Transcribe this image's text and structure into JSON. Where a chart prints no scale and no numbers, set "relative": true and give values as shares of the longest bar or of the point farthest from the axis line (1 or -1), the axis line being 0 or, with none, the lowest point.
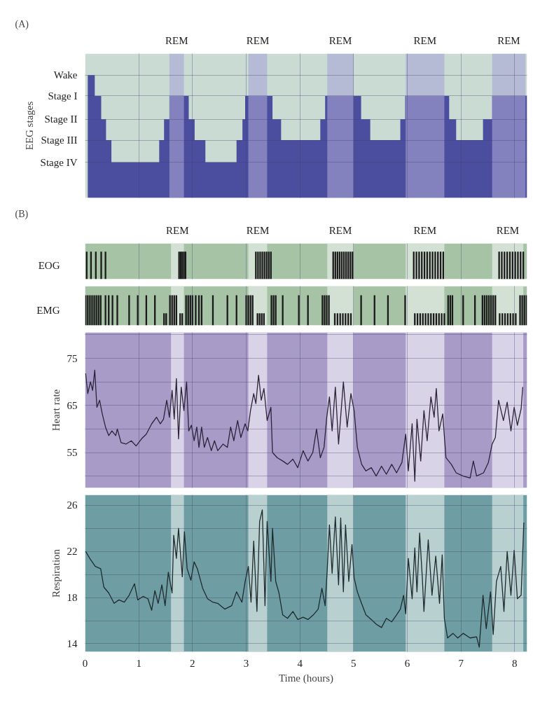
{
  "chart_data": [
    {
      "type": "area",
      "relative": true,
      "annotations": [
        "(A)",
        "Wake",
        "Stage I",
        "Stage II",
        "Stage III",
        "Stage IV"
      ],
      "ylabel": "EEG stages",
      "color": "#4b4e9e",
      "x": [
        0.05,
        0.18,
        0.18,
        0.3,
        0.3,
        0.39,
        0.39,
        0.49,
        0.49,
        1.38,
        1.38,
        1.47,
        1.47,
        1.57,
        1.57,
        1.93,
        1.93,
        2.04,
        2.04,
        2.24,
        2.24,
        2.82,
        2.82,
        2.93,
        2.93,
        2.98,
        2.98,
        3.49,
        3.49,
        3.65,
        3.65,
        4.38,
        4.38,
        4.47,
        4.47,
        5.14,
        5.14,
        5.31,
        5.31,
        5.87,
        5.87,
        5.96,
        5.96,
        6.78,
        6.78,
        6.91,
        6.91,
        7.41,
        7.41,
        7.58,
        7.58,
        8.23
      ],
      "values": [
        1,
        1,
        0.83,
        0.83,
        0.64,
        0.64,
        0.47,
        0.47,
        0.29,
        0.29,
        0.47,
        0.47,
        0.64,
        0.64,
        0.83,
        0.83,
        0.64,
        0.64,
        0.47,
        0.47,
        0.29,
        0.29,
        0.47,
        0.47,
        0.64,
        0.64,
        0.83,
        0.83,
        0.64,
        0.64,
        0.47,
        0.47,
        0.64,
        0.64,
        0.83,
        0.83,
        0.64,
        0.64,
        0.47,
        0.47,
        0.64,
        0.64,
        0.83,
        0.83,
        0.64,
        0.64,
        0.47,
        0.47,
        0.64,
        0.64,
        0.83,
        0.83
      ],
      "xlim": [
        0,
        8.23
      ],
      "xticks": [
        0,
        1,
        2,
        3,
        4,
        5,
        6,
        7,
        8
      ],
      "grid": true,
      "tick_labels": "y",
      "bands": [
        {
          "axis": "x",
          "from": 0,
          "to": 8.23,
          "color": "#c9dbd3"
        },
        {
          "axis": "x",
          "from": 1.57,
          "to": 1.84,
          "color": "#a9a5d6",
          "label": "REM"
        },
        {
          "axis": "x",
          "from": 3.04,
          "to": 3.39,
          "color": "#a9a5d6",
          "label": "REM"
        },
        {
          "axis": "x",
          "from": 4.51,
          "to": 5.0,
          "color": "#a9a5d6",
          "label": "REM"
        },
        {
          "axis": "x",
          "from": 5.97,
          "to": 6.69,
          "color": "#a9a5d6",
          "label": "REM"
        },
        {
          "axis": "x",
          "from": 7.58,
          "to": 8.2,
          "color": "#a9a5d6",
          "label": "REM"
        }
      ]
    },
    {
      "type": "bar",
      "relative": true,
      "annotations": [
        "(B)"
      ],
      "ylabel": "EOG",
      "xlim": [
        0,
        8.23
      ],
      "xticks": [
        0,
        1,
        2,
        3,
        4,
        5,
        6,
        7,
        8
      ],
      "grid": "x",
      "tick_labels": false,
      "color": "#1a1a1a",
      "x": [
        0.03,
        0.11,
        0.2,
        0.3,
        0.38,
        1.75,
        1.78,
        1.81,
        1.84,
        1.87,
        3.18,
        3.22,
        3.26,
        3.3,
        3.34,
        3.38,
        3.42,
        3.46,
        4.62,
        4.66,
        4.7,
        4.74,
        4.78,
        4.82,
        4.86,
        4.9,
        4.94,
        4.98,
        6.12,
        6.17,
        6.22,
        6.27,
        6.32,
        6.37,
        6.42,
        6.47,
        6.52,
        6.57,
        6.62,
        6.67,
        7.71,
        7.76,
        7.81,
        7.86,
        7.91,
        7.96,
        8.01,
        8.06,
        8.11,
        8.16
      ],
      "values": [
        1,
        1,
        1,
        1,
        1,
        1,
        1,
        1,
        1,
        1,
        1,
        1,
        1,
        1,
        1,
        1,
        1,
        1,
        1,
        1,
        1,
        1,
        1,
        1,
        1,
        1,
        1,
        1,
        1,
        1,
        1,
        1,
        1,
        1,
        1,
        1,
        1,
        1,
        1,
        1,
        1,
        1,
        1,
        1,
        1,
        1,
        1,
        1,
        1,
        1
      ],
      "bands": [
        {
          "axis": "x",
          "from": 0,
          "to": 8.23,
          "color": "#a7c3a6"
        },
        {
          "axis": "x",
          "from": 1.6,
          "to": 1.84,
          "color": "#d3e1d4",
          "label": "REM"
        },
        {
          "axis": "x",
          "from": 3.04,
          "to": 3.39,
          "color": "#d3e1d4",
          "label": "REM"
        },
        {
          "axis": "x",
          "from": 4.51,
          "to": 5.0,
          "color": "#d3e1d4",
          "label": "REM"
        },
        {
          "axis": "x",
          "from": 5.97,
          "to": 6.69,
          "color": "#d3e1d4",
          "label": "REM"
        },
        {
          "axis": "x",
          "from": 7.58,
          "to": 8.16,
          "color": "#d3e1d4",
          "label": "REM"
        }
      ]
    },
    {
      "type": "bar",
      "relative": true,
      "ylabel": "EMG",
      "xlim": [
        0,
        8.23
      ],
      "xticks": [
        0,
        1,
        2,
        3,
        4,
        5,
        6,
        7,
        8
      ],
      "grid": "x",
      "tick_labels": false,
      "color": "#1a1a1a",
      "x": [
        0.01,
        0.05,
        0.09,
        0.13,
        0.17,
        0.21,
        0.25,
        0.29,
        0.38,
        0.44,
        0.51,
        0.6,
        0.82,
        0.98,
        1.14,
        1.3,
        1.47,
        1.51,
        1.58,
        1.62,
        1.66,
        1.7,
        1.77,
        1.81,
        1.88,
        1.92,
        1.96,
        2.0,
        2.06,
        2.12,
        2.17,
        2.38,
        2.65,
        2.82,
        3.0,
        3.04,
        3.08,
        3.12,
        3.21,
        3.25,
        3.29,
        3.33,
        3.47,
        3.51,
        3.55,
        3.68,
        3.98,
        4.15,
        4.42,
        4.46,
        4.5,
        4.54,
        4.65,
        4.7,
        4.75,
        4.8,
        4.85,
        4.9,
        4.95,
        5.14,
        5.39,
        5.64,
        5.96,
        6.14,
        6.19,
        6.24,
        6.29,
        6.34,
        6.39,
        6.44,
        6.49,
        6.54,
        6.59,
        6.64,
        6.69,
        6.76,
        6.8,
        6.84,
        7.04,
        7.26,
        7.4,
        7.44,
        7.48,
        7.52,
        7.56,
        7.6,
        7.64,
        7.72,
        7.77,
        7.82,
        7.87,
        7.92,
        7.97,
        8.02,
        8.1,
        8.14,
        8.18,
        8.22
      ],
      "values": [
        1,
        1,
        1,
        1,
        1,
        1,
        1,
        1,
        1,
        1,
        1,
        1,
        1,
        1,
        1,
        1,
        0.4,
        0.4,
        1,
        1,
        1,
        1,
        0.4,
        0.4,
        1,
        1,
        1,
        1,
        1,
        1,
        1,
        1,
        1,
        1,
        1,
        1,
        1,
        1,
        0.4,
        0.4,
        0.4,
        0.4,
        1,
        1,
        1,
        1,
        1,
        1,
        1,
        1,
        1,
        1,
        0.4,
        0.4,
        0.4,
        0.4,
        0.4,
        0.4,
        0.4,
        1,
        1,
        1,
        1,
        0.4,
        0.4,
        0.4,
        0.4,
        0.4,
        0.4,
        0.4,
        0.4,
        0.4,
        0.4,
        0.4,
        0.4,
        1,
        1,
        1,
        1,
        1,
        1,
        1,
        1,
        1,
        1,
        1,
        1,
        0.4,
        0.4,
        0.4,
        0.4,
        0.4,
        0.4,
        0.4,
        1,
        1,
        1,
        1
      ],
      "bands": [
        {
          "axis": "x",
          "from": 0,
          "to": 8.23,
          "color": "#a7c3a6"
        },
        {
          "axis": "x",
          "from": 1.6,
          "to": 1.84,
          "color": "#d3e1d4"
        },
        {
          "axis": "x",
          "from": 3.04,
          "to": 3.39,
          "color": "#d3e1d4"
        },
        {
          "axis": "x",
          "from": 4.51,
          "to": 5.0,
          "color": "#d3e1d4"
        },
        {
          "axis": "x",
          "from": 5.97,
          "to": 6.69,
          "color": "#d3e1d4"
        },
        {
          "axis": "x",
          "from": 7.58,
          "to": 8.16,
          "color": "#d3e1d4"
        }
      ]
    },
    {
      "type": "line",
      "ylabel": "Heart rate",
      "color": "#2b2338",
      "xlim": [
        0,
        8.23
      ],
      "xticks": [
        0,
        1,
        2,
        3,
        4,
        5,
        6,
        7,
        8
      ],
      "ylim": [
        47.5,
        80.5
      ],
      "yticks": [
        {
          "value": 50,
          "label": null
        },
        55,
        {
          "value": 60,
          "label": null
        },
        65,
        {
          "value": 70,
          "label": null
        },
        75,
        {
          "value": 80,
          "label": null
        }
      ],
      "grid": true,
      "tick_labels": "y",
      "x": [
        0.01,
        0.05,
        0.1,
        0.14,
        0.18,
        0.22,
        0.27,
        0.32,
        0.38,
        0.44,
        0.5,
        0.57,
        0.6,
        0.67,
        0.76,
        0.86,
        0.95,
        1.05,
        1.14,
        1.24,
        1.33,
        1.4,
        1.46,
        1.52,
        1.57,
        1.62,
        1.66,
        1.7,
        1.74,
        1.79,
        1.84,
        1.89,
        1.93,
        1.98,
        2.03,
        2.08,
        2.12,
        2.17,
        2.22,
        2.28,
        2.35,
        2.41,
        2.47,
        2.57,
        2.65,
        2.71,
        2.77,
        2.84,
        2.9,
        2.98,
        3.03,
        3.08,
        3.14,
        3.18,
        3.23,
        3.28,
        3.33,
        3.39,
        3.46,
        3.49,
        3.58,
        3.68,
        3.77,
        3.87,
        3.96,
        4.06,
        4.15,
        4.24,
        4.31,
        4.38,
        4.45,
        4.5,
        4.55,
        4.6,
        4.66,
        4.72,
        4.81,
        4.88,
        4.95,
        5.01,
        5.07,
        5.15,
        5.23,
        5.33,
        5.42,
        5.52,
        5.61,
        5.71,
        5.8,
        5.9,
        5.97,
        6.02,
        6.09,
        6.14,
        6.18,
        6.25,
        6.31,
        6.37,
        6.44,
        6.5,
        6.54,
        6.59,
        6.66,
        6.72,
        6.82,
        6.91,
        7.04,
        7.17,
        7.23,
        7.29,
        7.42,
        7.51,
        7.58,
        7.64,
        7.7,
        7.79,
        7.86,
        7.93,
        7.99,
        8.05,
        8.12,
        8.15
      ],
      "values": [
        71.8,
        67.5,
        70,
        68.2,
        72.5,
        64.6,
        66.1,
        63.2,
        60.4,
        58.6,
        59.6,
        58.6,
        60,
        57.1,
        56.8,
        57.5,
        56.4,
        57.9,
        58.9,
        61.1,
        62.5,
        61.1,
        62.1,
        66.1,
        62.5,
        68.2,
        62.1,
        70.7,
        57.9,
        68.9,
        63.9,
        70,
        59.6,
        60.8,
        57.5,
        60.4,
        56.1,
        60.4,
        56.1,
        58.2,
        55.4,
        57.5,
        55.4,
        56.8,
        56.1,
        60.4,
        57.5,
        61.8,
        58.2,
        61.1,
        59.6,
        63.9,
        67.5,
        65.4,
        71.4,
        66.1,
        68.6,
        61.8,
        64.6,
        55,
        53.9,
        53.2,
        52.5,
        53.6,
        51.8,
        55.4,
        53.2,
        55,
        60,
        53.9,
        56.1,
        62.5,
        66.8,
        59.6,
        68.9,
        56.8,
        70,
        60.4,
        67.5,
        63.9,
        56.1,
        52.5,
        51.1,
        51.8,
        50,
        52.1,
        50.4,
        52.5,
        50.7,
        52.9,
        58.9,
        51.1,
        61.1,
        48.9,
        62.1,
        53.2,
        63.9,
        57.5,
        66.8,
        62.5,
        68.6,
        59.6,
        63.2,
        53.9,
        52.5,
        50.7,
        50,
        49.6,
        53.2,
        50,
        50.7,
        52.9,
        56.8,
        58.2,
        66.1,
        61.8,
        65.7,
        59.6,
        64.6,
        60.8,
        64.3,
        68.9
      ],
      "bands": [
        {
          "axis": "x",
          "from": 0,
          "to": 8.23,
          "color": "#a89bc8"
        },
        {
          "axis": "x",
          "from": 1.6,
          "to": 1.84,
          "color": "#d9d3e8"
        },
        {
          "axis": "x",
          "from": 3.04,
          "to": 3.39,
          "color": "#d9d3e8"
        },
        {
          "axis": "x",
          "from": 4.51,
          "to": 5.0,
          "color": "#d9d3e8"
        },
        {
          "axis": "x",
          "from": 5.97,
          "to": 6.69,
          "color": "#d9d3e8"
        },
        {
          "axis": "x",
          "from": 7.58,
          "to": 8.16,
          "color": "#d9d3e8"
        }
      ]
    },
    {
      "type": "line",
      "ylabel": "Respiration",
      "xlabel": "Time (hours)",
      "color": "#1f2a2c",
      "xlim": [
        0,
        8.23
      ],
      "xticks": [
        0,
        1,
        2,
        3,
        4,
        5,
        6,
        7,
        8
      ],
      "ylim": [
        13.3,
        26.9
      ],
      "yticks": [
        14,
        {
          "value": 16,
          "label": null
        },
        18,
        {
          "value": 20,
          "label": null
        },
        22,
        {
          "value": 24,
          "label": null
        },
        26
      ],
      "grid": true,
      "x": [
        0.01,
        0.1,
        0.19,
        0.29,
        0.35,
        0.44,
        0.54,
        0.63,
        0.73,
        0.82,
        0.92,
        0.98,
        1.08,
        1.17,
        1.24,
        1.3,
        1.36,
        1.43,
        1.49,
        1.55,
        1.62,
        1.65,
        1.7,
        1.74,
        1.81,
        1.85,
        1.9,
        1.97,
        2.03,
        2.09,
        2.19,
        2.28,
        2.38,
        2.47,
        2.6,
        2.73,
        2.82,
        2.92,
        2.98,
        3.04,
        3.09,
        3.14,
        3.2,
        3.25,
        3.3,
        3.35,
        3.39,
        3.46,
        3.49,
        3.55,
        3.61,
        3.68,
        3.77,
        3.87,
        3.96,
        4.06,
        4.15,
        4.25,
        4.34,
        4.41,
        4.47,
        4.51,
        4.55,
        4.6,
        4.66,
        4.72,
        4.76,
        4.81,
        4.85,
        4.91,
        4.97,
        5.01,
        5.07,
        5.14,
        5.23,
        5.33,
        5.42,
        5.52,
        5.61,
        5.71,
        5.8,
        5.87,
        5.93,
        5.97,
        6.02,
        6.09,
        6.14,
        6.18,
        6.23,
        6.28,
        6.31,
        6.39,
        6.46,
        6.53,
        6.6,
        6.65,
        6.69,
        6.75,
        6.85,
        6.94,
        7.04,
        7.17,
        7.29,
        7.34,
        7.41,
        7.47,
        7.55,
        7.6,
        7.66,
        7.74,
        7.8,
        7.86,
        7.93,
        7.99,
        8.05,
        8.12,
        8.17
      ],
      "values": [
        22,
        21.3,
        20.7,
        20.5,
        18.9,
        18.4,
        17.5,
        17.8,
        17.6,
        18.2,
        19.2,
        17.8,
        18.1,
        17.9,
        16.9,
        18.6,
        17.5,
        19.1,
        17.3,
        20.2,
        18.4,
        23.4,
        21.4,
        24,
        19.8,
        23.7,
        20.5,
        19.5,
        21.1,
        20.5,
        18.8,
        17.9,
        17.6,
        17.5,
        17,
        17.3,
        18.5,
        17.6,
        19.4,
        20.7,
        17.6,
        22.9,
        16.8,
        24.6,
        25.6,
        17.3,
        24.6,
        19.4,
        24,
        19.4,
        18.4,
        16.5,
        16.2,
        16.8,
        16.1,
        16.3,
        16.1,
        16.5,
        17,
        18.8,
        17.3,
        20.5,
        24.3,
        20.1,
        25,
        19.1,
        24.9,
        18.5,
        24.3,
        19.4,
        22.6,
        19.7,
        18.5,
        17.6,
        16.5,
        16.1,
        15.7,
        15.4,
        16.2,
        15.9,
        16.5,
        17,
        18.2,
        16.6,
        21.4,
        17.9,
        22.3,
        18.5,
        23.6,
        19.7,
        16.8,
        23,
        18.2,
        21.6,
        17.5,
        21.7,
        16.2,
        14.5,
        14.9,
        14.5,
        14.9,
        14.5,
        14.6,
        13.7,
        18.2,
        15.3,
        18.5,
        14.8,
        19.4,
        20.7,
        16.8,
        22,
        18.2,
        22.1,
        17.9,
        18.2,
        24.5
      ],
      "bands": [
        {
          "axis": "x",
          "from": 0,
          "to": 8.23,
          "color": "#6e9ea3"
        },
        {
          "axis": "x",
          "from": 1.6,
          "to": 1.84,
          "color": "#b9d0d1"
        },
        {
          "axis": "x",
          "from": 3.04,
          "to": 3.39,
          "color": "#b9d0d1"
        },
        {
          "axis": "x",
          "from": 4.51,
          "to": 5.0,
          "color": "#b9d0d1"
        },
        {
          "axis": "x",
          "from": 5.97,
          "to": 6.69,
          "color": "#b9d0d1"
        },
        {
          "axis": "x",
          "from": 7.58,
          "to": 8.16,
          "color": "#b9d0d1"
        }
      ]
    }
  ]
}
